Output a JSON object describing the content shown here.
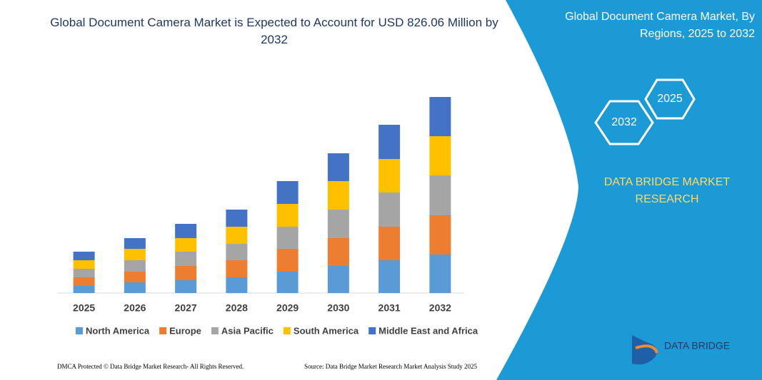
{
  "chart_data": {
    "type": "bar",
    "stacked": true,
    "title": "Global Document Camera Market is Expected to Account for USD 826.06 Million by 2032",
    "categories": [
      "2025",
      "2026",
      "2027",
      "2028",
      "2029",
      "2030",
      "2031",
      "2032"
    ],
    "series": [
      {
        "name": "North America",
        "color": "#5b9bd5",
        "values": [
          10,
          15,
          18,
          22,
          30,
          38,
          46,
          54
        ]
      },
      {
        "name": "Europe",
        "color": "#ed7d31",
        "values": [
          12,
          15,
          20,
          24,
          32,
          39,
          47,
          55
        ]
      },
      {
        "name": "Asia Pacific",
        "color": "#a5a5a5",
        "values": [
          12,
          16,
          20,
          23,
          31,
          40,
          48,
          56
        ]
      },
      {
        "name": "South America",
        "color": "#ffc000",
        "values": [
          12,
          16,
          19,
          24,
          32,
          40,
          47,
          55
        ]
      },
      {
        "name": "Middle East and Africa",
        "color": "#4472c4",
        "values": [
          12,
          15,
          20,
          24,
          32,
          39,
          48,
          55
        ]
      }
    ]
  },
  "side_panel": {
    "title": "Global Document Camera Market, By Regions, 2025 to 2032",
    "hexagon_start": "2025",
    "hexagon_end": "2032",
    "brand": "DATA BRIDGE MARKET RESEARCH",
    "logo_text": "DATA BRIDGE"
  },
  "footer": {
    "left": "DMCA Protected © Data Bridge Market Research- All Rights Reserved.",
    "right": "Source: Data Bridge Market Research Market Analysis Study 2025"
  }
}
